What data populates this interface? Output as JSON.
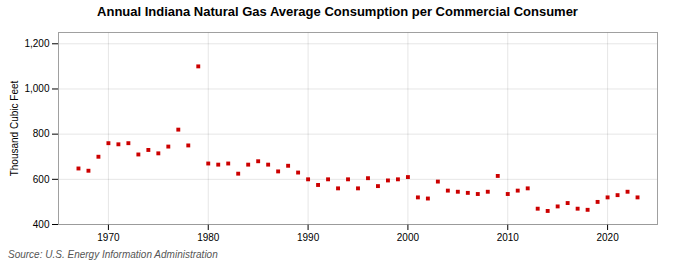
{
  "chart_data": {
    "type": "scatter",
    "title": "Annual Indiana Natural Gas Average Consumption per Commercial Consumer",
    "ylabel": "Thousand Cubic Feet",
    "source": "Source: U.S. Energy Information Administration",
    "color": "#cc0000",
    "marker": "square",
    "grid": true,
    "xlim": [
      1965,
      2025
    ],
    "xticks": [
      1970,
      1980,
      1990,
      2000,
      2010,
      2020
    ],
    "ylim": [
      400,
      1250
    ],
    "yticks": [
      400,
      600,
      800,
      {
        "value": 1000,
        "label": "1,000"
      },
      {
        "value": 1200,
        "label": "1,200"
      }
    ],
    "x": [
      1967,
      1968,
      1969,
      1970,
      1971,
      1972,
      1973,
      1974,
      1975,
      1976,
      1977,
      1978,
      1979,
      1980,
      1981,
      1982,
      1983,
      1984,
      1985,
      1986,
      1987,
      1988,
      1989,
      1990,
      1991,
      1992,
      1993,
      1994,
      1995,
      1996,
      1997,
      1998,
      1999,
      2000,
      2001,
      2002,
      2003,
      2004,
      2005,
      2006,
      2007,
      2008,
      2009,
      2010,
      2011,
      2012,
      2013,
      2014,
      2015,
      2016,
      2017,
      2018,
      2019,
      2020,
      2021,
      2022,
      2023
    ],
    "values": [
      648,
      638,
      700,
      760,
      755,
      760,
      710,
      730,
      715,
      745,
      820,
      750,
      1100,
      670,
      665,
      670,
      625,
      665,
      680,
      665,
      635,
      660,
      630,
      600,
      575,
      600,
      560,
      600,
      560,
      605,
      570,
      595,
      600,
      610,
      520,
      515,
      590,
      550,
      545,
      540,
      535,
      545,
      615,
      535,
      550,
      560,
      470,
      460,
      480,
      495,
      470,
      465,
      500,
      520,
      530,
      545,
      520
    ]
  }
}
